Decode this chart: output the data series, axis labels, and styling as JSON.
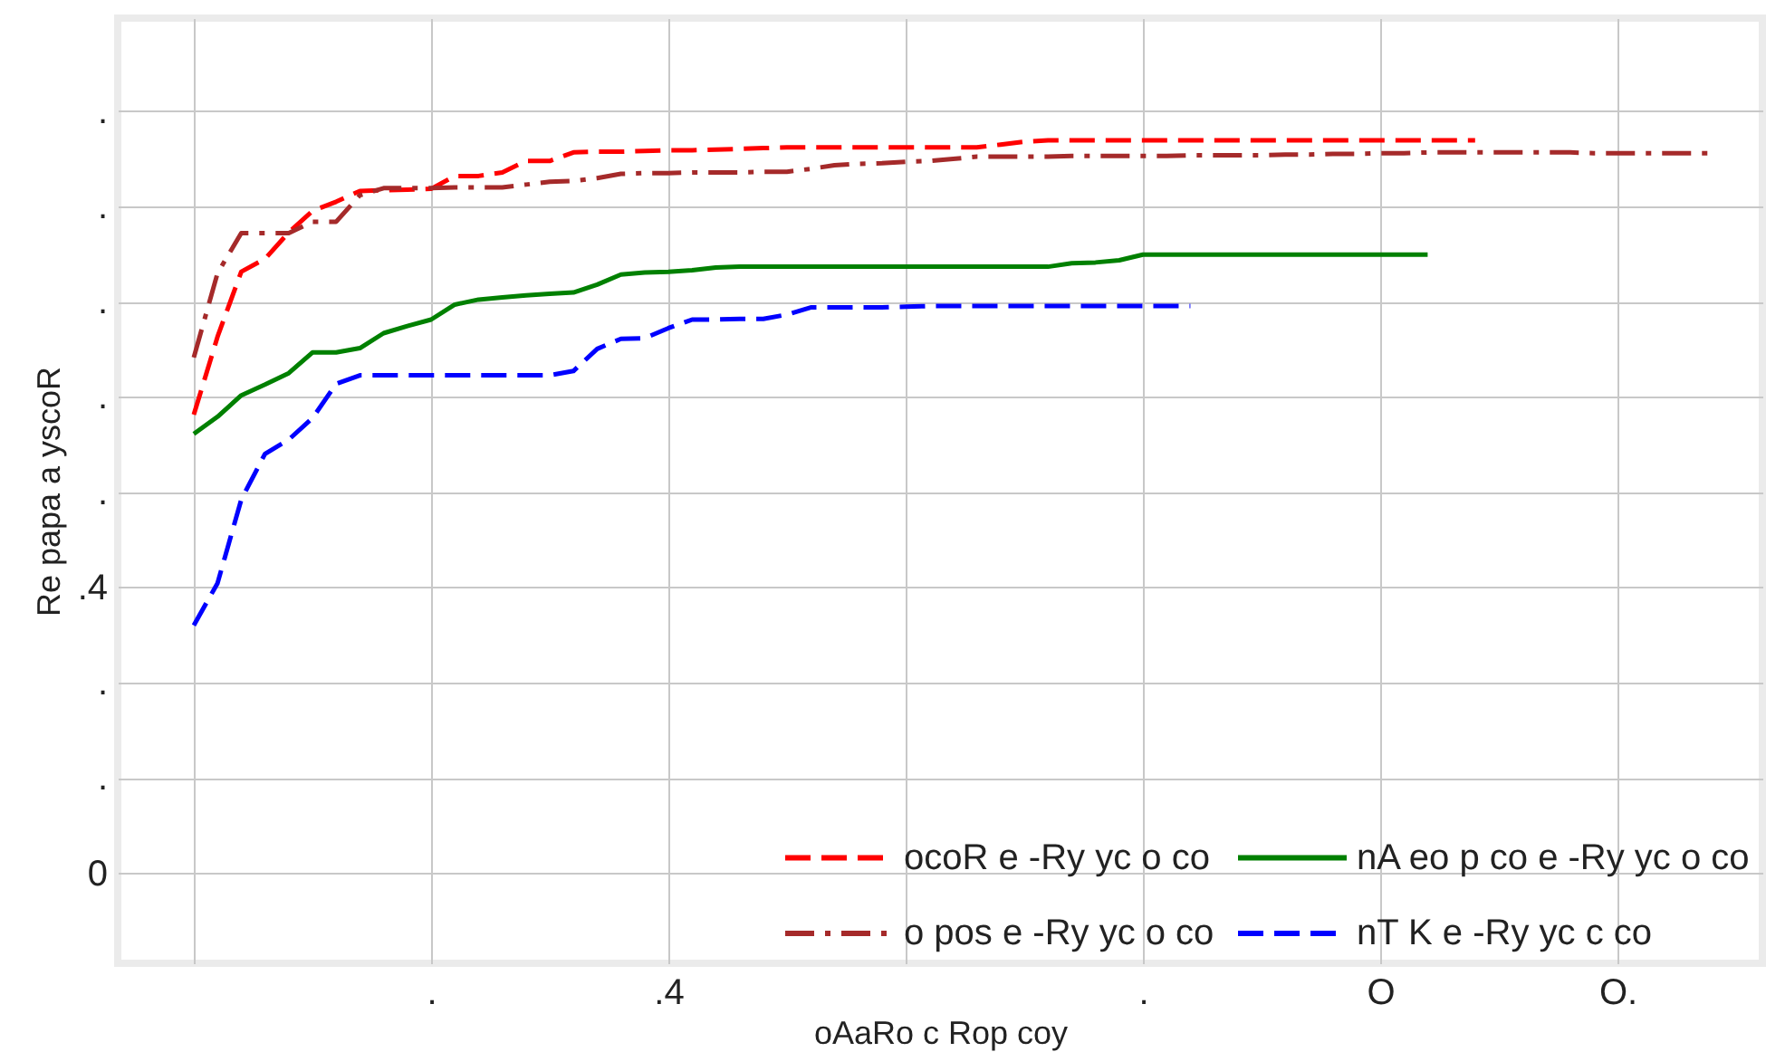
{
  "chart_data": {
    "type": "line",
    "xlabel": "oAaRo c Rop coy",
    "ylabel": "Re papa   a yscoR",
    "categories": [
      null,
      null,
      null,
      null,
      null,
      null,
      null,
      null,
      null,
      null,
      ".",
      null,
      null,
      null,
      null,
      null,
      null,
      null,
      null,
      null,
      ".4",
      null,
      null,
      null,
      null,
      null,
      null,
      null,
      null,
      null,
      null,
      null,
      null,
      null,
      null,
      null,
      null,
      null,
      null,
      null,
      ".",
      null,
      null,
      null,
      null,
      null,
      null,
      null,
      null,
      null,
      "O",
      null,
      null,
      null,
      null,
      null,
      null,
      null,
      null,
      null,
      "O.",
      null,
      null,
      null,
      null
    ],
    "ylim": [
      -0.126,
      1.197
    ],
    "yticks": [
      {
        "value": 0,
        "label": "0"
      },
      {
        "value": 0.1333,
        "label": "."
      },
      {
        "value": 0.2667,
        "label": "."
      },
      {
        "value": 0.4,
        "label": ".4"
      },
      {
        "value": 0.5333,
        "label": "."
      },
      {
        "value": 0.6667,
        "label": "."
      },
      {
        "value": 0.8,
        "label": "."
      },
      {
        "value": 0.9333,
        "label": "."
      },
      {
        "value": 1.0667,
        "label": "."
      }
    ],
    "grid": true,
    "legend": "bottom right",
    "marker": "none",
    "series": [
      {
        "name": "ocoR e -Ry yc o co",
        "color": "#ff0000",
        "line_style": "dashed",
        "values": [
          0.642,
          0.751,
          0.842,
          0.86,
          0.897,
          0.927,
          0.94,
          0.955,
          0.956,
          0.957,
          0.958,
          0.976,
          0.976,
          0.981,
          0.997,
          0.997,
          1.009,
          1.01,
          1.01,
          1.011,
          1.012,
          1.012,
          1.013,
          1.014,
          1.015,
          1.016,
          1.016,
          1.016,
          1.016,
          1.016,
          1.016,
          1.016,
          1.016,
          1.016,
          1.02,
          1.024,
          1.026,
          1.026,
          1.026,
          1.026,
          1.026,
          1.026,
          1.026,
          1.026,
          1.026,
          1.026,
          1.026,
          1.026,
          1.026,
          1.026,
          1.026,
          1.026,
          1.026,
          1.026,
          1.026,
          null,
          null,
          null,
          null,
          null,
          null,
          null,
          null,
          null,
          null
        ]
      },
      {
        "name": "o pos e -Ry yc o co",
        "color": "#a52a2a",
        "line_style": "dashdot",
        "values": [
          0.722,
          0.84,
          0.896,
          0.896,
          0.896,
          0.912,
          0.912,
          0.949,
          0.959,
          0.959,
          0.959,
          0.96,
          0.96,
          0.96,
          0.964,
          0.968,
          0.969,
          0.973,
          0.979,
          0.98,
          0.98,
          0.981,
          0.981,
          0.981,
          0.982,
          0.982,
          0.986,
          0.991,
          0.993,
          0.994,
          0.996,
          0.997,
          1.0,
          1.003,
          1.003,
          1.003,
          1.003,
          1.004,
          1.004,
          1.004,
          1.004,
          1.004,
          1.005,
          1.005,
          1.005,
          1.005,
          1.006,
          1.006,
          1.007,
          1.007,
          1.008,
          1.008,
          1.009,
          1.009,
          1.009,
          1.009,
          1.009,
          1.009,
          1.009,
          1.008,
          1.008,
          1.008,
          1.008,
          1.008,
          1.008
        ]
      },
      {
        "name": "nA eo p co e -Ry yc o co",
        "color": "#008000",
        "line_style": "solid",
        "values": [
          0.615,
          0.639,
          0.669,
          0.684,
          0.7,
          0.729,
          0.729,
          0.735,
          0.756,
          0.766,
          0.775,
          0.796,
          0.803,
          0.806,
          0.809,
          0.811,
          0.813,
          0.824,
          0.838,
          0.841,
          0.842,
          0.844,
          0.848,
          0.849,
          0.849,
          0.849,
          0.849,
          0.849,
          0.849,
          0.849,
          0.849,
          0.849,
          0.849,
          0.849,
          0.849,
          0.849,
          0.849,
          0.854,
          0.855,
          0.858,
          0.866,
          0.866,
          0.866,
          0.866,
          0.866,
          0.866,
          0.866,
          0.866,
          0.866,
          0.866,
          0.866,
          0.866,
          0.866,
          null,
          null,
          null,
          null,
          null,
          null,
          null,
          null,
          null,
          null,
          null,
          null
        ]
      },
      {
        "name": "nT  K e -Ry yc c co",
        "color": "#0000ff",
        "line_style": "dashed",
        "values": [
          0.347,
          0.406,
          0.523,
          0.587,
          0.607,
          0.637,
          0.685,
          0.697,
          0.697,
          0.697,
          0.697,
          0.697,
          0.697,
          0.697,
          0.697,
          0.697,
          0.703,
          0.734,
          0.748,
          0.749,
          0.763,
          0.775,
          0.775,
          0.776,
          0.776,
          0.782,
          0.792,
          0.792,
          0.792,
          0.792,
          0.793,
          0.794,
          0.794,
          0.794,
          0.794,
          0.794,
          0.794,
          0.794,
          0.794,
          0.794,
          0.794,
          0.794,
          0.794,
          null,
          null,
          null,
          null,
          null,
          null,
          null,
          null,
          null,
          null,
          null,
          null,
          null,
          null,
          null,
          null,
          null,
          null,
          null,
          null,
          null,
          null
        ]
      }
    ]
  }
}
